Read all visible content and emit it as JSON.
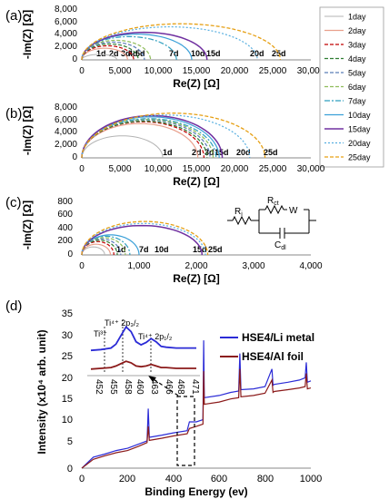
{
  "chart_data": [
    {
      "panel_label": "(a)",
      "type": "line",
      "xlabel": "Re(Z) [Ω]",
      "ylabel": "-Im(Z) [Ω]",
      "xlim": [
        0,
        30000
      ],
      "ylim": [
        0,
        8000
      ],
      "xticks": [
        "0",
        "5,000",
        "10,000",
        "15,000",
        "20,000",
        "25,000",
        "30,000"
      ],
      "yticks": [
        "0",
        "2,000",
        "4,000",
        "6,000",
        "8,000"
      ],
      "series": [
        {
          "name": "1day",
          "x": [
            0,
            2300,
            4600
          ],
          "y": [
            0,
            900,
            0
          ]
        },
        {
          "name": "2day",
          "x": [
            0,
            3000,
            6000
          ],
          "y": [
            0,
            1900,
            0
          ]
        },
        {
          "name": "3day",
          "x": [
            0,
            3400,
            6800
          ],
          "y": [
            0,
            2300,
            0
          ]
        },
        {
          "name": "4day",
          "x": [
            0,
            3700,
            7400
          ],
          "y": [
            0,
            2600,
            0
          ]
        },
        {
          "name": "5day",
          "x": [
            0,
            4100,
            8200
          ],
          "y": [
            0,
            2900,
            0
          ]
        },
        {
          "name": "6day",
          "x": [
            0,
            4500,
            9000
          ],
          "y": [
            0,
            3200,
            0
          ]
        },
        {
          "name": "7day",
          "x": [
            0,
            6200,
            12400
          ],
          "y": [
            0,
            3800,
            0
          ]
        },
        {
          "name": "10day",
          "x": [
            0,
            7200,
            14400
          ],
          "y": [
            0,
            4200,
            0
          ]
        },
        {
          "name": "15day",
          "x": [
            0,
            8200,
            16400
          ],
          "y": [
            0,
            4500,
            0
          ]
        },
        {
          "name": "20day",
          "x": [
            0,
            11500,
            23000
          ],
          "y": [
            0,
            5400,
            0
          ]
        },
        {
          "name": "25day",
          "x": [
            0,
            13000,
            26000
          ],
          "y": [
            0,
            5900,
            0
          ]
        }
      ],
      "annotations": [
        "1d",
        "2d",
        "3d",
        "4d",
        "5d",
        "7d",
        "10d",
        "15d",
        "20d",
        "25d"
      ]
    },
    {
      "panel_label": "(b)",
      "type": "line",
      "xlabel": "Re(Z) [Ω]",
      "ylabel": "-Im(Z) [Ω]",
      "xlim": [
        0,
        30000
      ],
      "ylim": [
        0,
        8000
      ],
      "xticks": [
        "0",
        "5,000",
        "10,000",
        "15,000",
        "20,000",
        "25,000",
        "30,000"
      ],
      "yticks": [
        "0",
        "2,000",
        "4,000",
        "6,000",
        "8,000"
      ],
      "series": [
        {
          "name": "1day",
          "x": [
            0,
            5300,
            10600
          ],
          "y": [
            0,
            3600,
            0
          ]
        },
        {
          "name": "2day",
          "x": [
            0,
            7600,
            15200
          ],
          "y": [
            0,
            5600,
            0
          ]
        },
        {
          "name": "3day",
          "x": [
            0,
            8000,
            16000
          ],
          "y": [
            0,
            5900,
            0
          ]
        },
        {
          "name": "4day",
          "x": [
            0,
            8200,
            16400
          ],
          "y": [
            0,
            6000,
            0
          ]
        },
        {
          "name": "5day",
          "x": [
            0,
            8400,
            16800
          ],
          "y": [
            0,
            6200,
            0
          ]
        },
        {
          "name": "6day",
          "x": [
            0,
            8600,
            17200
          ],
          "y": [
            0,
            6300,
            0
          ]
        },
        {
          "name": "7day",
          "x": [
            0,
            8800,
            17600
          ],
          "y": [
            0,
            6400,
            0
          ]
        },
        {
          "name": "10day",
          "x": [
            0,
            9000,
            18000
          ],
          "y": [
            0,
            6700,
            0
          ]
        },
        {
          "name": "15day",
          "x": [
            0,
            9200,
            18400
          ],
          "y": [
            0,
            6900,
            0
          ]
        },
        {
          "name": "20day",
          "x": [
            0,
            11000,
            22000
          ],
          "y": [
            0,
            7000,
            0
          ]
        },
        {
          "name": "25day",
          "x": [
            0,
            12000,
            24000
          ],
          "y": [
            0,
            7300,
            0
          ]
        }
      ],
      "annotations": [
        "1d",
        "2d",
        "3d",
        "15d",
        "20d",
        "25d"
      ]
    },
    {
      "panel_label": "(c)",
      "type": "line",
      "xlabel": "Re(Z) [Ω]",
      "ylabel": "-Im(Z) [Ω]",
      "xlim": [
        0,
        4000
      ],
      "ylim": [
        0,
        800
      ],
      "xticks": [
        "0",
        "1,000",
        "2,000",
        "3,000",
        "4,000"
      ],
      "yticks": [
        "0",
        "200",
        "400",
        "600",
        "800"
      ],
      "series": [
        {
          "name": "1day",
          "x": [
            0,
            200,
            400
          ],
          "y": [
            0,
            120,
            0
          ]
        },
        {
          "name": "2day",
          "x": [
            0,
            250,
            500
          ],
          "y": [
            0,
            160,
            0
          ]
        },
        {
          "name": "3day",
          "x": [
            0,
            280,
            560
          ],
          "y": [
            0,
            200,
            0
          ]
        },
        {
          "name": "4day",
          "x": [
            0,
            310,
            620
          ],
          "y": [
            0,
            220,
            0
          ]
        },
        {
          "name": "5day",
          "x": [
            0,
            340,
            680
          ],
          "y": [
            0,
            240,
            0
          ]
        },
        {
          "name": "6day",
          "x": [
            0,
            380,
            760
          ],
          "y": [
            0,
            260,
            0
          ]
        },
        {
          "name": "7day",
          "x": [
            0,
            420,
            840
          ],
          "y": [
            0,
            280,
            0
          ]
        },
        {
          "name": "10day",
          "x": [
            0,
            500,
            1000
          ],
          "y": [
            0,
            300,
            0
          ]
        },
        {
          "name": "15day",
          "x": [
            0,
            1050,
            2100
          ],
          "y": [
            0,
            440,
            0
          ]
        },
        {
          "name": "20day",
          "x": [
            0,
            1080,
            2160
          ],
          "y": [
            0,
            470,
            0
          ]
        },
        {
          "name": "25day",
          "x": [
            0,
            1100,
            2200
          ],
          "y": [
            0,
            500,
            0
          ]
        }
      ],
      "annotations": [
        "1d",
        "7d",
        "10d",
        "15d",
        "25d"
      ],
      "circuit_labels": [
        "R",
        "i",
        "R",
        "ct",
        "W",
        "C",
        "dl"
      ]
    },
    {
      "panel_label": "(d)",
      "type": "line",
      "xlabel": "Binding Energy (ev)",
      "ylabel": "Intensity (x10⁴ arb. unit)",
      "xlim": [
        0,
        1000
      ],
      "ylim": [
        0,
        35
      ],
      "xticks": [
        "0",
        "200",
        "400",
        "600",
        "800",
        "1000"
      ],
      "yticks": [
        "0",
        "5",
        "10",
        "15",
        "20",
        "25",
        "30",
        "35"
      ],
      "series": [
        {
          "name": "HSE4/Li metal",
          "x": [
            0,
            50,
            100,
            150,
            200,
            250,
            285,
            290,
            295,
            350,
            400,
            460,
            470,
            500,
            529,
            532,
            535,
            600,
            650,
            685,
            690,
            695,
            750,
            800,
            830,
            835,
            840,
            900,
            950,
            975,
            980,
            985,
            1000
          ],
          "y": [
            0,
            2.5,
            3.2,
            4.0,
            4.5,
            5.5,
            6.2,
            13.5,
            7.0,
            7.5,
            8.0,
            8.5,
            10.5,
            10.5,
            11.0,
            29.0,
            16.0,
            16.5,
            17.2,
            17.5,
            26.0,
            17.8,
            18.0,
            18.5,
            22.5,
            18.8,
            19.0,
            19.5,
            20.0,
            20.5,
            24.0,
            19.5,
            19.8
          ]
        },
        {
          "name": "HSE4/Al foil",
          "x": [
            0,
            50,
            100,
            150,
            200,
            250,
            285,
            290,
            295,
            350,
            400,
            460,
            470,
            500,
            529,
            532,
            535,
            600,
            650,
            685,
            690,
            695,
            750,
            800,
            830,
            835,
            840,
            900,
            950,
            975,
            980,
            985,
            1000
          ],
          "y": [
            0,
            2.0,
            2.8,
            3.5,
            4.0,
            5.0,
            5.8,
            9.5,
            6.3,
            6.8,
            7.3,
            7.8,
            9.0,
            9.5,
            10.0,
            22.0,
            14.5,
            15.0,
            15.7,
            16.0,
            22.5,
            16.2,
            16.5,
            17.0,
            20.0,
            17.2,
            17.4,
            17.8,
            18.2,
            18.5,
            21.5,
            18.0,
            18.2
          ]
        }
      ],
      "inset": {
        "xticks": [
          "452",
          "455",
          "458",
          "460",
          "463",
          "466",
          "468",
          "471"
        ],
        "xlim": [
          451,
          472
        ],
        "labels": {
          "ti3": "Ti³⁺",
          "ti4_32": "Ti⁴⁺ 2p₃/₂",
          "ti4_12": "Ti⁴⁺ 2p₁/₂"
        },
        "series": [
          {
            "name": "HSE4/Li metal",
            "x": [
              451,
              453,
              455,
              456,
              457,
              458,
              459,
              460,
              461,
              462,
              463,
              464,
              465,
              466,
              468,
              470,
              472
            ],
            "y": [
              0.5,
              0.6,
              0.8,
              1.3,
              2.4,
              3.5,
              2.9,
              1.6,
              1.2,
              1.5,
              2.0,
              1.6,
              1.0,
              0.9,
              0.8,
              0.8,
              0.8
            ]
          },
          {
            "name": "HSE4/Al foil",
            "x": [
              451,
              453,
              455,
              456,
              457,
              458,
              459,
              460,
              461,
              462,
              463,
              464,
              465,
              466,
              468,
              470,
              472
            ],
            "y": [
              -1.9,
              -1.8,
              -1.7,
              -1.5,
              -1.2,
              -0.9,
              -1.1,
              -1.5,
              -1.6,
              -1.5,
              -1.3,
              -1.5,
              -1.7,
              -1.7,
              -1.8,
              -1.8,
              -1.8
            ]
          }
        ]
      }
    }
  ],
  "legend_top": {
    "entries": [
      "1day",
      "2day",
      "3day",
      "4day",
      "5day",
      "6day",
      "7day",
      "10day",
      "15day",
      "20day",
      "25day"
    ]
  },
  "colors": {
    "1day": "#b3b3b3",
    "2day": "#e9a08c",
    "3day": "#c00000",
    "4day": "#2e7d32",
    "5day": "#5b7db8",
    "6day": "#8fbc5a",
    "7day": "#2f9fbf",
    "10day": "#3aa0d8",
    "15day": "#7030a0",
    "20day": "#56aee0",
    "25day": "#e6a015",
    "li_metal": "#2b2bd6",
    "al_foil": "#8b1a1a"
  }
}
